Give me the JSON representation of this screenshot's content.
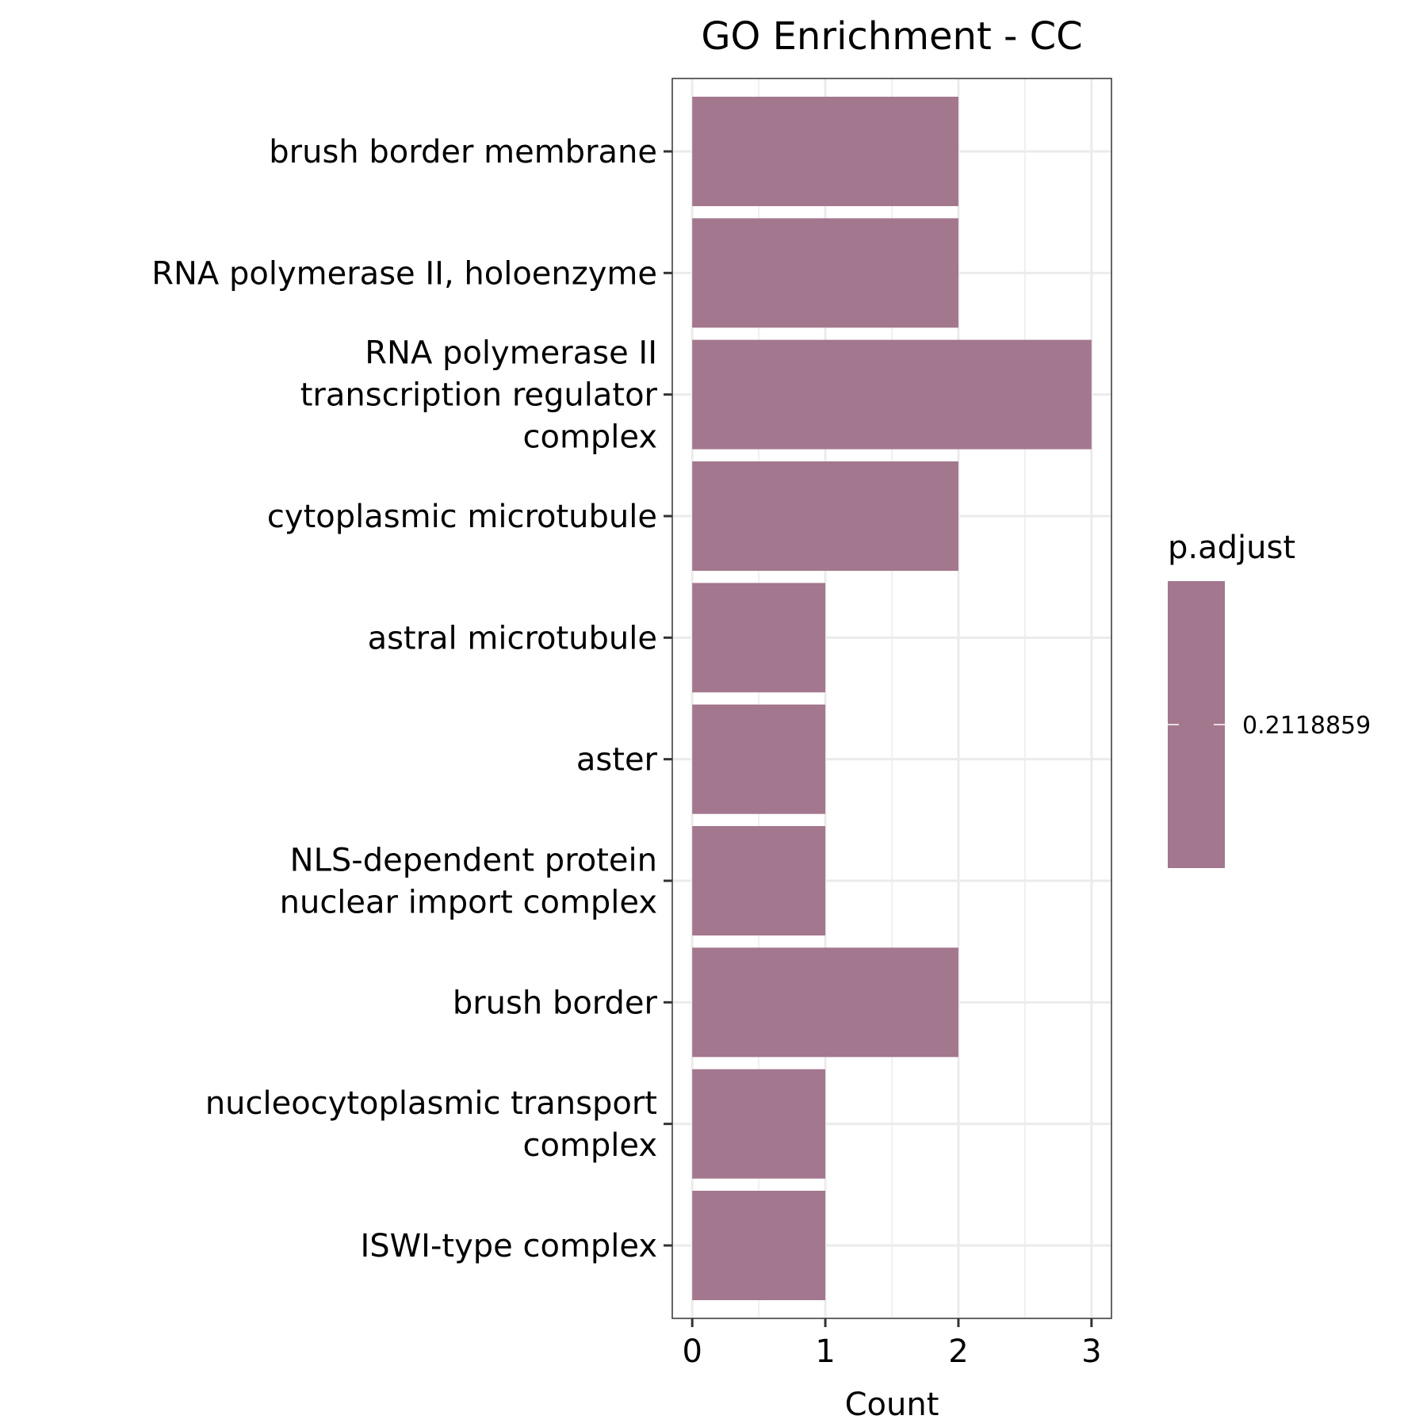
{
  "chart_data": {
    "type": "bar",
    "orientation": "horizontal",
    "title": "GO Enrichment - CC",
    "xlabel": "Count",
    "ylabel": "",
    "xlim": [
      -0.15,
      3.15
    ],
    "x_ticks": [
      0,
      1,
      2,
      3
    ],
    "x_tick_labels": [
      "0",
      "1",
      "2",
      "3"
    ],
    "grid": true,
    "categories": [
      [
        "brush border membrane"
      ],
      [
        "RNA polymerase II, holoenzyme"
      ],
      [
        "RNA polymerase II",
        "transcription regulator",
        "complex"
      ],
      [
        "cytoplasmic microtubule"
      ],
      [
        "astral microtubule"
      ],
      [
        "aster"
      ],
      [
        "NLS-dependent protein",
        "nuclear import complex"
      ],
      [
        "brush border"
      ],
      [
        "nucleocytoplasmic transport",
        "complex"
      ],
      [
        "ISWI-type complex"
      ]
    ],
    "values": [
      2,
      2,
      3,
      2,
      1,
      1,
      1,
      2,
      1,
      1
    ],
    "bar_color": "#a3778e",
    "legend": {
      "title": "p.adjust",
      "labels": [
        "0.2118859"
      ],
      "color": "#a3778e",
      "placement": "right"
    }
  }
}
